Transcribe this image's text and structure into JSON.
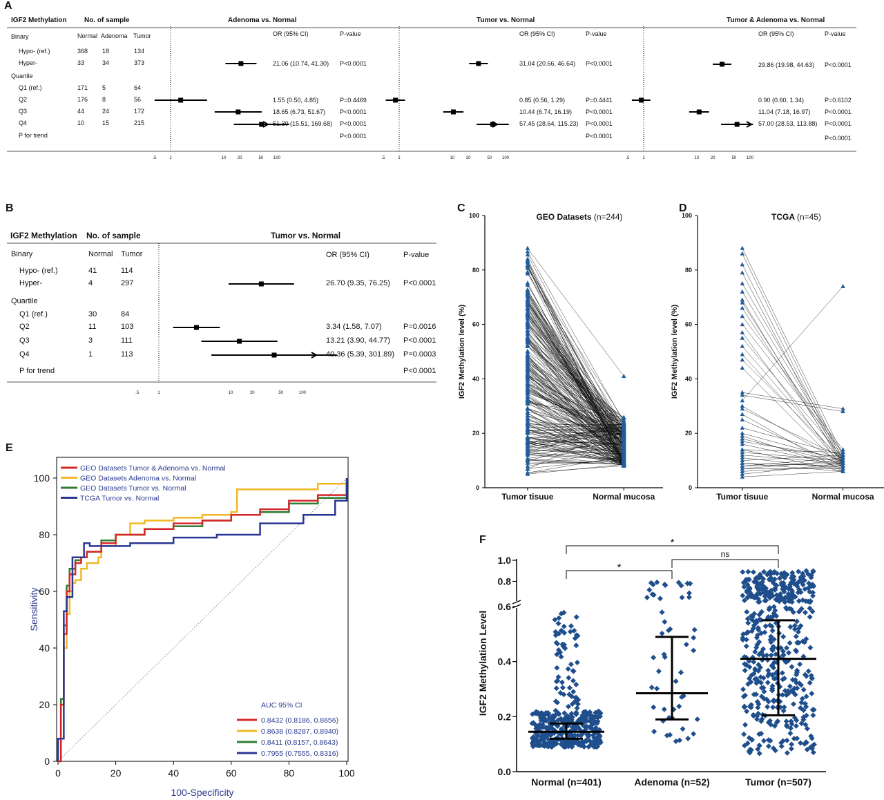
{
  "panel_labels": {
    "a": "A",
    "b": "B",
    "c": "C",
    "d": "D",
    "e": "E",
    "f": "F"
  },
  "panelA": {
    "head": {
      "meth": "IGF2 Methylation",
      "nsample": "No. of sample"
    },
    "groups": [
      "Adenoma vs. Normal",
      "Tumor vs. Normal",
      "Tumor & Adenoma vs. Normal"
    ],
    "col_or": "OR (95% CI)",
    "col_p": "P-value",
    "sub_cols": [
      "Normal",
      "Adenoma",
      "Tumor"
    ],
    "rows": [
      {
        "label": "Binary",
        "normal": "",
        "adenoma": "",
        "tumor": "",
        "e": [
          "",
          "",
          "",
          ""
        ],
        "f": [
          "",
          "",
          "",
          ""
        ],
        "g": [
          "",
          "",
          "",
          ""
        ]
      },
      {
        "label": "Hypo- (ref.)",
        "normal": "368",
        "adenoma": "18",
        "tumor": "134",
        "e": [
          "",
          "",
          "",
          ""
        ],
        "f": [
          "",
          "",
          "",
          ""
        ],
        "g": [
          "",
          "",
          "",
          ""
        ]
      },
      {
        "label": "Hyper-",
        "normal": "33",
        "adenoma": "34",
        "tumor": "373",
        "e": [
          "21.06 (10.74, 41.30)",
          "P<0.0001",
          "",
          ""
        ],
        "f": [
          "31.04 (20.66, 46.64)",
          "P<0.0001",
          "",
          ""
        ],
        "g": [
          "29.86 (19.98, 44.63)",
          "P<0.0001",
          "",
          ""
        ]
      },
      {
        "label": "Quartile",
        "normal": "",
        "adenoma": "",
        "tumor": "",
        "e": [
          "",
          "",
          "",
          ""
        ],
        "f": [
          "",
          "",
          "",
          ""
        ],
        "g": [
          "",
          "",
          "",
          ""
        ]
      },
      {
        "label": "Q1 (ref.)",
        "normal": "171",
        "adenoma": "5",
        "tumor": "64",
        "e": [
          "",
          "",
          "",
          ""
        ],
        "f": [
          "",
          "",
          "",
          ""
        ],
        "g": [
          "",
          "",
          "",
          ""
        ]
      },
      {
        "label": "Q2",
        "normal": "176",
        "adenoma": "8",
        "tumor": "56",
        "e": [
          "1.55 (0.50, 4.85)",
          "P=0.4469",
          "",
          ""
        ],
        "f": [
          "0.85 (0.56, 1.29)",
          "P=0.4441",
          "",
          ""
        ],
        "g": [
          "0.90 (0.60, 1.34)",
          "P=0.6102",
          "",
          ""
        ]
      },
      {
        "label": "Q3",
        "normal": "44",
        "adenoma": "24",
        "tumor": "172",
        "e": [
          "18.65 (6.73, 51.67)",
          "P<0.0001",
          "",
          ""
        ],
        "f": [
          "10.44 (6.74, 16.19)",
          "P<0.0001",
          "",
          ""
        ],
        "g": [
          "11.04 (7.18, 16.97)",
          "P<0.0001",
          "",
          ""
        ]
      },
      {
        "label": "Q4",
        "normal": "10",
        "adenoma": "15",
        "tumor": "215",
        "e": [
          "51.30 (15.51, 169.68)",
          "P<0.0001",
          "",
          ""
        ],
        "f": [
          "57.45 (28.64, 115.23)",
          "P<0.0001",
          "",
          ""
        ],
        "g": [
          "57.00 (28.53, 113.88)",
          "P<0.0001",
          "",
          ""
        ]
      },
      {
        "label": "P for trend",
        "normal": "",
        "adenoma": "",
        "tumor": "",
        "e": [
          "",
          "P<0.0001",
          "",
          ""
        ],
        "f": [
          "",
          "P<0.0001",
          "",
          ""
        ],
        "g": [
          "",
          "P<0.0001",
          "",
          ""
        ]
      }
    ],
    "forest": [
      [
        null,
        null,
        {
          "or": 21.06,
          "lo": 10.74,
          "hi": 41.3
        },
        null,
        null,
        {
          "or": 1.55,
          "lo": 0.5,
          "hi": 4.85
        },
        {
          "or": 18.65,
          "lo": 6.73,
          "hi": 51.67
        },
        {
          "or": 51.3,
          "lo": 15.51,
          "hi": 169.68,
          "arrow": true
        },
        null
      ],
      [
        null,
        null,
        {
          "or": 31.04,
          "lo": 20.66,
          "hi": 46.64
        },
        null,
        null,
        {
          "or": 0.85,
          "lo": 0.56,
          "hi": 1.29
        },
        {
          "or": 10.44,
          "lo": 6.74,
          "hi": 16.19
        },
        {
          "or": 57.45,
          "lo": 28.64,
          "hi": 115.23,
          "arrow": true
        },
        null
      ],
      [
        null,
        null,
        {
          "or": 29.86,
          "lo": 19.98,
          "hi": 44.63
        },
        null,
        null,
        {
          "or": 0.9,
          "lo": 0.6,
          "hi": 1.34
        },
        {
          "or": 11.04,
          "lo": 7.18,
          "hi": 16.97
        },
        {
          "or": 57.0,
          "lo": 28.53,
          "hi": 113.88,
          "arrow": true
        },
        null
      ]
    ],
    "axis_ticks": [
      ".5",
      "1",
      "10",
      "20",
      "50",
      "100"
    ]
  },
  "panelB": {
    "head": {
      "meth": "IGF2 Methylation",
      "nsample": "No. of sample",
      "group": "Tumor vs. Normal"
    },
    "col_or": "OR (95% CI)",
    "col_p": "P-value",
    "sub_cols": [
      "Normal",
      "Tumor"
    ],
    "rows": [
      {
        "label": "Binary",
        "normal": "",
        "tumor": "",
        "or": "",
        "p": ""
      },
      {
        "label": "Hypo- (ref.)",
        "normal": "41",
        "tumor": "114",
        "or": "",
        "p": ""
      },
      {
        "label": "Hyper-",
        "normal": "4",
        "tumor": "297",
        "or": "26.70 (9.35, 76.25)",
        "p": "P<0.0001"
      },
      {
        "label": "Quartile",
        "normal": "",
        "tumor": "",
        "or": "",
        "p": ""
      },
      {
        "label": "Q1 (ref.)",
        "normal": "30",
        "tumor": "84",
        "or": "",
        "p": ""
      },
      {
        "label": "Q2",
        "normal": "11",
        "tumor": "103",
        "or": "3.34 (1.58, 7.07)",
        "p": "P=0.0016"
      },
      {
        "label": "Q3",
        "normal": "3",
        "tumor": "111",
        "or": "13.21 (3.90, 44.77)",
        "p": "P<0.0001"
      },
      {
        "label": "Q4",
        "normal": "1",
        "tumor": "113",
        "or": "40.36 (5.39, 301.89)",
        "p": "P=0.0003"
      },
      {
        "label": "P for trend",
        "normal": "",
        "tumor": "",
        "or": "",
        "p": "P<0.0001"
      }
    ],
    "forest": [
      null,
      null,
      {
        "or": 26.7,
        "lo": 9.35,
        "hi": 76.25
      },
      null,
      null,
      {
        "or": 3.34,
        "lo": 1.58,
        "hi": 7.07
      },
      {
        "or": 13.21,
        "lo": 3.9,
        "hi": 44.77
      },
      {
        "or": 40.36,
        "lo": 5.39,
        "hi": 301.89,
        "arrow": true
      },
      null
    ],
    "axis_ticks": [
      ".5",
      "1",
      "10",
      "20",
      "50",
      "100"
    ]
  },
  "chart_data": [
    {
      "id": "C",
      "type": "line",
      "title": "GEO Datasets",
      "title_note": "(n=244)",
      "ylabel": "IGF2 Methylation level (%)",
      "categories": [
        "Tumor tisuue",
        "Normal mucosa"
      ],
      "ylim": [
        0,
        100
      ],
      "yticks": [
        0,
        20,
        40,
        60,
        80,
        100
      ],
      "n_pairs": 244,
      "marker_color": "#1f5d9c"
    },
    {
      "id": "D",
      "type": "line",
      "title": "TCGA",
      "title_note": "(n=45)",
      "ylabel": "IGF2 Methylation level (%)",
      "categories": [
        "Tumor tisuue",
        "Normal mucosa"
      ],
      "ylim": [
        0,
        100
      ],
      "yticks": [
        0,
        20,
        40,
        60,
        80,
        100
      ],
      "pairs": [
        [
          88,
          12
        ],
        [
          86,
          10
        ],
        [
          82,
          9
        ],
        [
          79,
          8
        ],
        [
          75,
          12
        ],
        [
          72,
          11
        ],
        [
          69,
          8
        ],
        [
          68,
          10
        ],
        [
          66,
          9
        ],
        [
          63,
          14
        ],
        [
          60,
          13
        ],
        [
          57,
          7
        ],
        [
          55,
          11
        ],
        [
          52,
          9
        ],
        [
          49,
          8
        ],
        [
          47,
          10
        ],
        [
          44,
          7
        ],
        [
          35,
          29
        ],
        [
          34,
          28
        ],
        [
          32,
          74
        ],
        [
          30,
          9
        ],
        [
          29,
          11
        ],
        [
          27,
          6
        ],
        [
          25,
          8
        ],
        [
          22,
          12
        ],
        [
          20,
          10
        ],
        [
          19,
          7
        ],
        [
          18,
          9
        ],
        [
          17,
          11
        ],
        [
          16,
          8
        ],
        [
          14,
          6
        ],
        [
          13,
          10
        ],
        [
          12,
          9
        ],
        [
          11,
          7
        ],
        [
          10,
          12
        ],
        [
          9,
          8
        ],
        [
          9,
          6
        ],
        [
          8,
          9
        ],
        [
          8,
          11
        ],
        [
          7,
          7
        ],
        [
          7,
          10
        ],
        [
          6,
          8
        ],
        [
          5,
          9
        ],
        [
          4,
          6
        ],
        [
          14,
          13
        ]
      ],
      "marker_color": "#1f5d9c"
    },
    {
      "id": "E",
      "type": "line",
      "xlabel": "100-Specificity",
      "ylabel": "Sensitivity",
      "xlim": [
        0,
        100
      ],
      "ylim": [
        0,
        100
      ],
      "xticks": [
        0,
        20,
        40,
        60,
        80,
        100
      ],
      "yticks": [
        0,
        20,
        40,
        60,
        80,
        100
      ],
      "legend_title": "AUC 95% CI",
      "series": [
        {
          "name": "GEO Datasets Tumor & Adenoma vs. Normal",
          "auc": "0.8432 (0.8186, 0.8656)",
          "color": "#d62728",
          "x": [
            0,
            1,
            2,
            3,
            4,
            6,
            8,
            10,
            15,
            20,
            30,
            40,
            50,
            60,
            70,
            80,
            90,
            100
          ],
          "y": [
            0,
            20,
            45,
            60,
            66,
            70,
            72,
            74,
            77,
            80,
            82,
            84,
            85,
            87,
            89,
            92,
            94,
            99
          ]
        },
        {
          "name": "GEO Datasets Adenoma vs. Normal",
          "auc": "0.8638 (0.8287, 0.8940)",
          "color": "#f2b824",
          "x": [
            0,
            1,
            2,
            3,
            4,
            5,
            6,
            8,
            10,
            14,
            15,
            20,
            25,
            30,
            40,
            50,
            55,
            60,
            62,
            90,
            98,
            100
          ],
          "y": [
            0,
            20,
            40,
            52,
            60,
            63,
            64,
            68,
            70,
            72,
            76,
            80,
            84,
            85,
            86,
            87,
            87,
            88,
            96,
            98,
            98,
            100
          ]
        },
        {
          "name": "GEO Datasets Tumor vs. Normal",
          "auc": "0.8411 (0.8157, 0.8643)",
          "color": "#2e7d32",
          "x": [
            0,
            1,
            2,
            3,
            4,
            6,
            8,
            10,
            15,
            20,
            30,
            40,
            50,
            60,
            70,
            80,
            90,
            100
          ],
          "y": [
            0,
            22,
            48,
            62,
            68,
            71,
            72,
            74,
            78,
            80,
            82,
            83,
            85,
            87,
            88,
            91,
            93,
            98
          ]
        },
        {
          "name": "TCGA Tumor vs. Normal",
          "auc": "0.7955 (0.7555, 0.8316)",
          "color": "#2a3593",
          "x": [
            0,
            0,
            2,
            2,
            3,
            3,
            5,
            5,
            9,
            9,
            11,
            11,
            25,
            40,
            55,
            70,
            85,
            96,
            100,
            100
          ],
          "y": [
            0,
            8,
            8,
            53,
            53,
            58,
            58,
            72,
            72,
            77,
            77,
            76,
            77,
            79,
            80,
            84,
            87,
            92,
            93,
            100
          ]
        }
      ]
    },
    {
      "id": "F",
      "type": "scatter",
      "ylabel": "IGF2 Methylation Level",
      "categories": [
        "Normal (n=401)",
        "Adenoma (n=52)",
        "Tumor (n=507)"
      ],
      "ylim": [
        0,
        1.0
      ],
      "yticks_lower": [
        "0.0",
        "0.2",
        "0.4",
        "0.6"
      ],
      "yticks_upper": [
        "0.8",
        "1.0"
      ],
      "groups": [
        {
          "n": 401,
          "median": 0.145,
          "q1": 0.12,
          "q3": 0.175,
          "min": 0.07,
          "max": 0.58
        },
        {
          "n": 52,
          "median": 0.285,
          "q1": 0.19,
          "q3": 0.49,
          "min": 0.1,
          "max": 0.8
        },
        {
          "n": 507,
          "median": 0.41,
          "q1": 0.205,
          "q3": 0.55,
          "min": 0.06,
          "max": 0.9
        }
      ],
      "brackets": [
        {
          "from": 0,
          "to": 2,
          "label": "*"
        },
        {
          "from": 0,
          "to": 1,
          "label": "*"
        },
        {
          "from": 1,
          "to": 2,
          "label": "ns"
        }
      ],
      "marker_color": "#1f4e8c"
    }
  ]
}
